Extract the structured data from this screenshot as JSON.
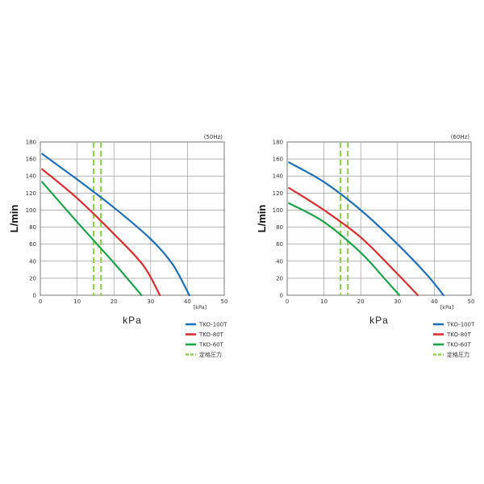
{
  "chart_data": [
    {
      "type": "line",
      "frequency_label": "(50Hz)",
      "xlabel": "kPa",
      "ylabel": "L/min",
      "x_unit_label": "[kPa]",
      "xlim": [
        0,
        50
      ],
      "ylim": [
        0,
        180
      ],
      "xticks": [
        0,
        10,
        20,
        30,
        40,
        50
      ],
      "yticks": [
        0,
        20,
        40,
        60,
        80,
        100,
        120,
        140,
        160,
        180
      ],
      "grid": true,
      "legend_position": "bottom-right",
      "series": [
        {
          "name": "TKO-100T",
          "color": "#1f6fb5",
          "x": [
            0.5,
            10,
            20,
            30,
            36,
            40.5
          ],
          "y": [
            166,
            136,
            103,
            66,
            36,
            0
          ]
        },
        {
          "name": "TKO-80T",
          "color": "#d62f2f",
          "x": [
            0.5,
            10,
            20,
            28,
            32.5
          ],
          "y": [
            148,
            114,
            72,
            35,
            0
          ]
        },
        {
          "name": "TKO-60T",
          "color": "#1fa34a",
          "x": [
            0.5,
            10,
            20,
            27.5
          ],
          "y": [
            133,
            86,
            38,
            0
          ]
        }
      ],
      "rated_pressure": {
        "name": "定格圧力",
        "color": "#8fd14f",
        "x": [
          14.5,
          16.5
        ]
      }
    },
    {
      "type": "line",
      "frequency_label": "(60Hz)",
      "xlabel": "kPa",
      "ylabel": "L/min",
      "x_unit_label": "[kPa]",
      "xlim": [
        0,
        50
      ],
      "ylim": [
        0,
        180
      ],
      "xticks": [
        0,
        10,
        20,
        30,
        40,
        50
      ],
      "yticks": [
        0,
        20,
        40,
        60,
        80,
        100,
        120,
        140,
        160,
        180
      ],
      "grid": true,
      "legend_position": "bottom-right",
      "series": [
        {
          "name": "TKO-100T",
          "color": "#1f6fb5",
          "x": [
            0.5,
            10,
            20,
            30,
            38,
            42.5
          ],
          "y": [
            156,
            133,
            100,
            60,
            24,
            0
          ]
        },
        {
          "name": "TKO-80T",
          "color": "#d62f2f",
          "x": [
            0.5,
            10,
            20,
            30,
            35.5
          ],
          "y": [
            126,
            100,
            68,
            25,
            0
          ]
        },
        {
          "name": "TKO-60T",
          "color": "#1fa34a",
          "x": [
            0.5,
            10,
            20,
            27,
            30.5
          ],
          "y": [
            108,
            86,
            50,
            17,
            0
          ]
        }
      ],
      "rated_pressure": {
        "name": "定格圧力",
        "color": "#8fd14f",
        "x": [
          14.5,
          16.5
        ]
      }
    }
  ]
}
